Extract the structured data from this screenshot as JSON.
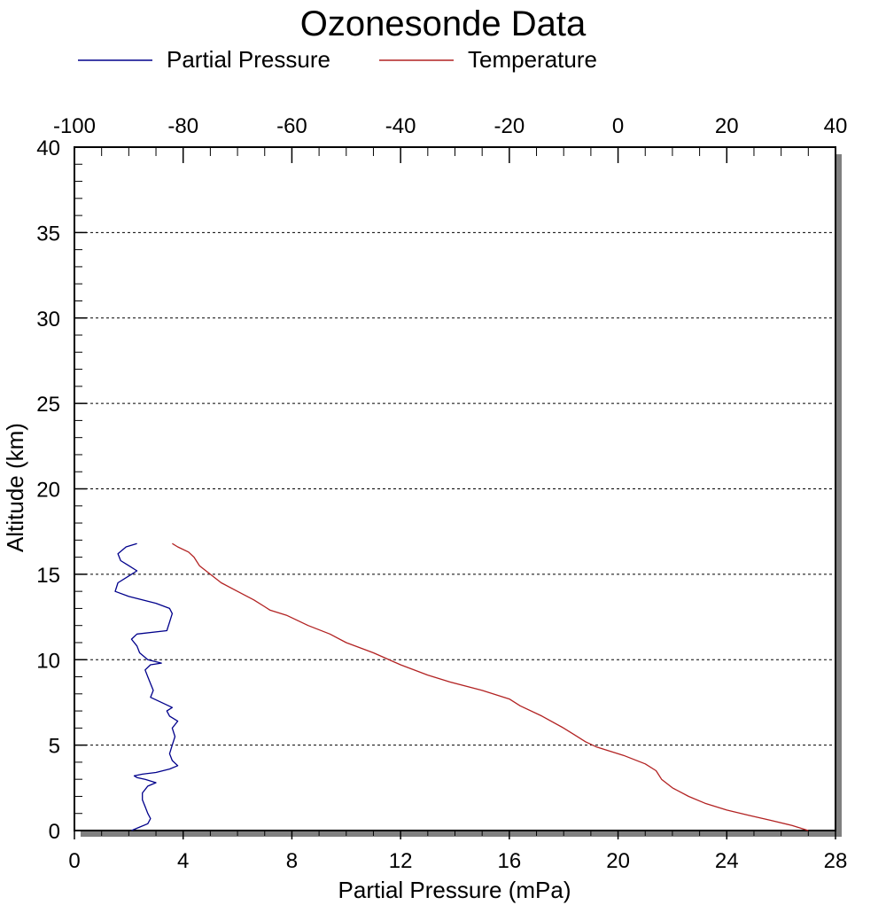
{
  "chart_data": {
    "type": "line",
    "title": "Ozonesonde Data",
    "xlabel": "Partial Pressure (mPa)",
    "ylabel": "Altitude (km)",
    "x_bottom": {
      "range": [
        0,
        28
      ],
      "ticks": [
        "0",
        "4",
        "8",
        "12",
        "16",
        "20",
        "24",
        "28"
      ],
      "tick_values": [
        0,
        4,
        8,
        12,
        16,
        20,
        24,
        28
      ]
    },
    "x_top": {
      "range": [
        -100,
        40
      ],
      "ticks": [
        "-100",
        "-80",
        "-60",
        "-40",
        "-20",
        "0",
        "20",
        "40"
      ],
      "tick_values": [
        -100,
        -80,
        -60,
        -40,
        -20,
        0,
        20,
        40
      ]
    },
    "y": {
      "range": [
        0,
        40
      ],
      "ticks": [
        "0",
        "5",
        "10",
        "15",
        "20",
        "25",
        "30",
        "35",
        "40"
      ],
      "tick_values": [
        0,
        5,
        10,
        15,
        20,
        25,
        30,
        35,
        40
      ]
    },
    "grid": "horizontal dotted",
    "legend_position": "top",
    "series": [
      {
        "name": "Partial Pressure",
        "axis": "bottom",
        "color": "#00008B",
        "points": [
          [
            2.1,
            0.0
          ],
          [
            2.4,
            0.2
          ],
          [
            2.7,
            0.4
          ],
          [
            2.8,
            0.7
          ],
          [
            2.7,
            1.0
          ],
          [
            2.6,
            1.4
          ],
          [
            2.5,
            1.8
          ],
          [
            2.5,
            2.2
          ],
          [
            2.7,
            2.6
          ],
          [
            3.0,
            2.8
          ],
          [
            2.6,
            3.0
          ],
          [
            2.3,
            3.1
          ],
          [
            2.2,
            3.2
          ],
          [
            2.5,
            3.3
          ],
          [
            3.0,
            3.4
          ],
          [
            3.5,
            3.6
          ],
          [
            3.8,
            3.8
          ],
          [
            3.6,
            4.1
          ],
          [
            3.5,
            4.5
          ],
          [
            3.6,
            5.0
          ],
          [
            3.7,
            5.5
          ],
          [
            3.6,
            6.0
          ],
          [
            3.8,
            6.4
          ],
          [
            3.5,
            6.7
          ],
          [
            3.4,
            7.0
          ],
          [
            3.6,
            7.2
          ],
          [
            3.2,
            7.5
          ],
          [
            2.8,
            7.8
          ],
          [
            2.9,
            8.2
          ],
          [
            2.8,
            8.6
          ],
          [
            2.7,
            9.0
          ],
          [
            2.6,
            9.4
          ],
          [
            2.8,
            9.7
          ],
          [
            3.2,
            9.8
          ],
          [
            2.7,
            10.0
          ],
          [
            2.4,
            10.4
          ],
          [
            2.3,
            10.8
          ],
          [
            2.1,
            11.2
          ],
          [
            2.3,
            11.5
          ],
          [
            3.4,
            11.7
          ],
          [
            3.5,
            12.2
          ],
          [
            3.6,
            12.7
          ],
          [
            3.5,
            13.0
          ],
          [
            3.0,
            13.3
          ],
          [
            2.0,
            13.7
          ],
          [
            1.5,
            14.0
          ],
          [
            1.6,
            14.5
          ],
          [
            2.0,
            14.9
          ],
          [
            2.3,
            15.2
          ],
          [
            2.0,
            15.5
          ],
          [
            1.7,
            15.8
          ],
          [
            1.6,
            16.2
          ],
          [
            1.9,
            16.6
          ],
          [
            2.3,
            16.8
          ]
        ]
      },
      {
        "name": "Temperature",
        "axis": "top",
        "color": "#B22222",
        "points": [
          [
            35.0,
            0.0
          ],
          [
            32.0,
            0.3
          ],
          [
            28.0,
            0.6
          ],
          [
            24.0,
            0.9
          ],
          [
            20.0,
            1.2
          ],
          [
            16.0,
            1.6
          ],
          [
            13.0,
            2.0
          ],
          [
            10.0,
            2.5
          ],
          [
            8.0,
            3.0
          ],
          [
            7.0,
            3.5
          ],
          [
            5.0,
            3.9
          ],
          [
            1.0,
            4.4
          ],
          [
            -4.0,
            4.9
          ],
          [
            -6.0,
            5.2
          ],
          [
            -8.0,
            5.6
          ],
          [
            -10.0,
            6.0
          ],
          [
            -14.0,
            6.7
          ],
          [
            -18.0,
            7.3
          ],
          [
            -20.0,
            7.7
          ],
          [
            -25.0,
            8.2
          ],
          [
            -31.0,
            8.7
          ],
          [
            -35.0,
            9.1
          ],
          [
            -40.0,
            9.7
          ],
          [
            -45.0,
            10.4
          ],
          [
            -50.0,
            11.0
          ],
          [
            -53.0,
            11.5
          ],
          [
            -57.0,
            12.0
          ],
          [
            -61.0,
            12.6
          ],
          [
            -64.0,
            12.9
          ],
          [
            -65.0,
            13.1
          ],
          [
            -67.0,
            13.5
          ],
          [
            -70.0,
            14.0
          ],
          [
            -73.0,
            14.5
          ],
          [
            -75.0,
            15.0
          ],
          [
            -77.0,
            15.5
          ],
          [
            -78.0,
            16.0
          ],
          [
            -79.0,
            16.3
          ],
          [
            -81.0,
            16.6
          ],
          [
            -82.0,
            16.8
          ]
        ]
      }
    ]
  }
}
